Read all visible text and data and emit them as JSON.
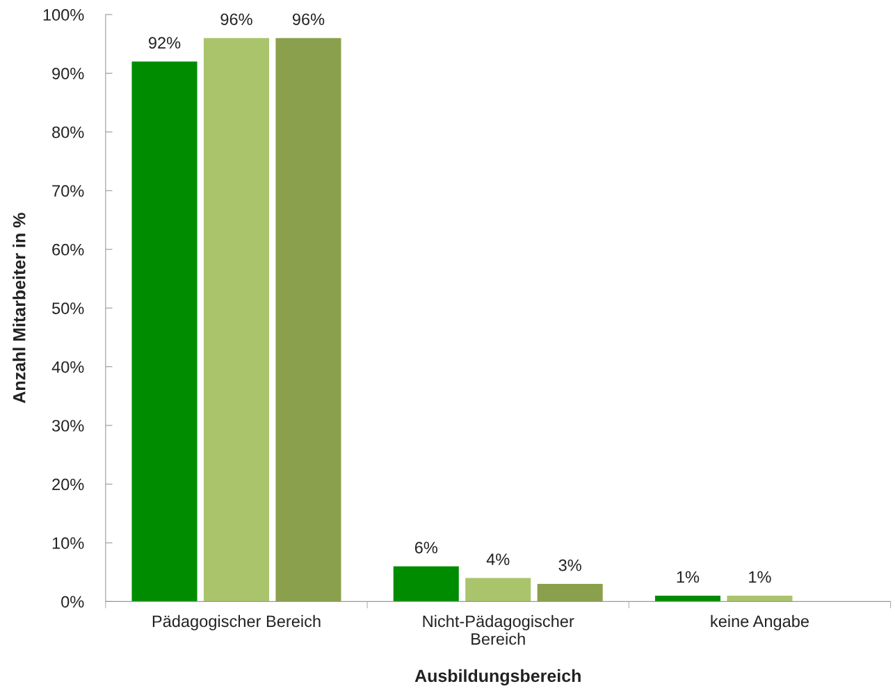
{
  "chart_data": {
    "type": "bar",
    "xlabel": "Ausbildungsbereich",
    "ylabel": "Anzahl Mitarbeiter in %",
    "categories": [
      "Pädagogischer Bereich",
      "Nicht-Pädagogischer\nBereich",
      "keine Angabe"
    ],
    "series": [
      {
        "color": "#008c00",
        "values": [
          92,
          6,
          1
        ],
        "value_labels": [
          "92%",
          "6%",
          "1%"
        ]
      },
      {
        "color": "#aac46c",
        "values": [
          96,
          4,
          1
        ],
        "value_labels": [
          "96%",
          "4%",
          "1%"
        ]
      },
      {
        "color": "#8aa04c",
        "values": [
          96,
          3,
          null
        ],
        "value_labels": [
          "96%",
          "3%",
          null
        ]
      }
    ],
    "ylim": [
      0,
      100
    ],
    "yticks": [
      {
        "value": 0,
        "label": "0%"
      },
      {
        "value": 10,
        "label": "10%"
      },
      {
        "value": 20,
        "label": "20%"
      },
      {
        "value": 30,
        "label": "30%"
      },
      {
        "value": 40,
        "label": "40%"
      },
      {
        "value": 50,
        "label": "50%"
      },
      {
        "value": 60,
        "label": "60%"
      },
      {
        "value": 70,
        "label": "70%"
      },
      {
        "value": 80,
        "label": "80%"
      },
      {
        "value": 90,
        "label": "90%"
      },
      {
        "value": 100,
        "label": "100%"
      }
    ],
    "grid": false,
    "legend": false
  }
}
